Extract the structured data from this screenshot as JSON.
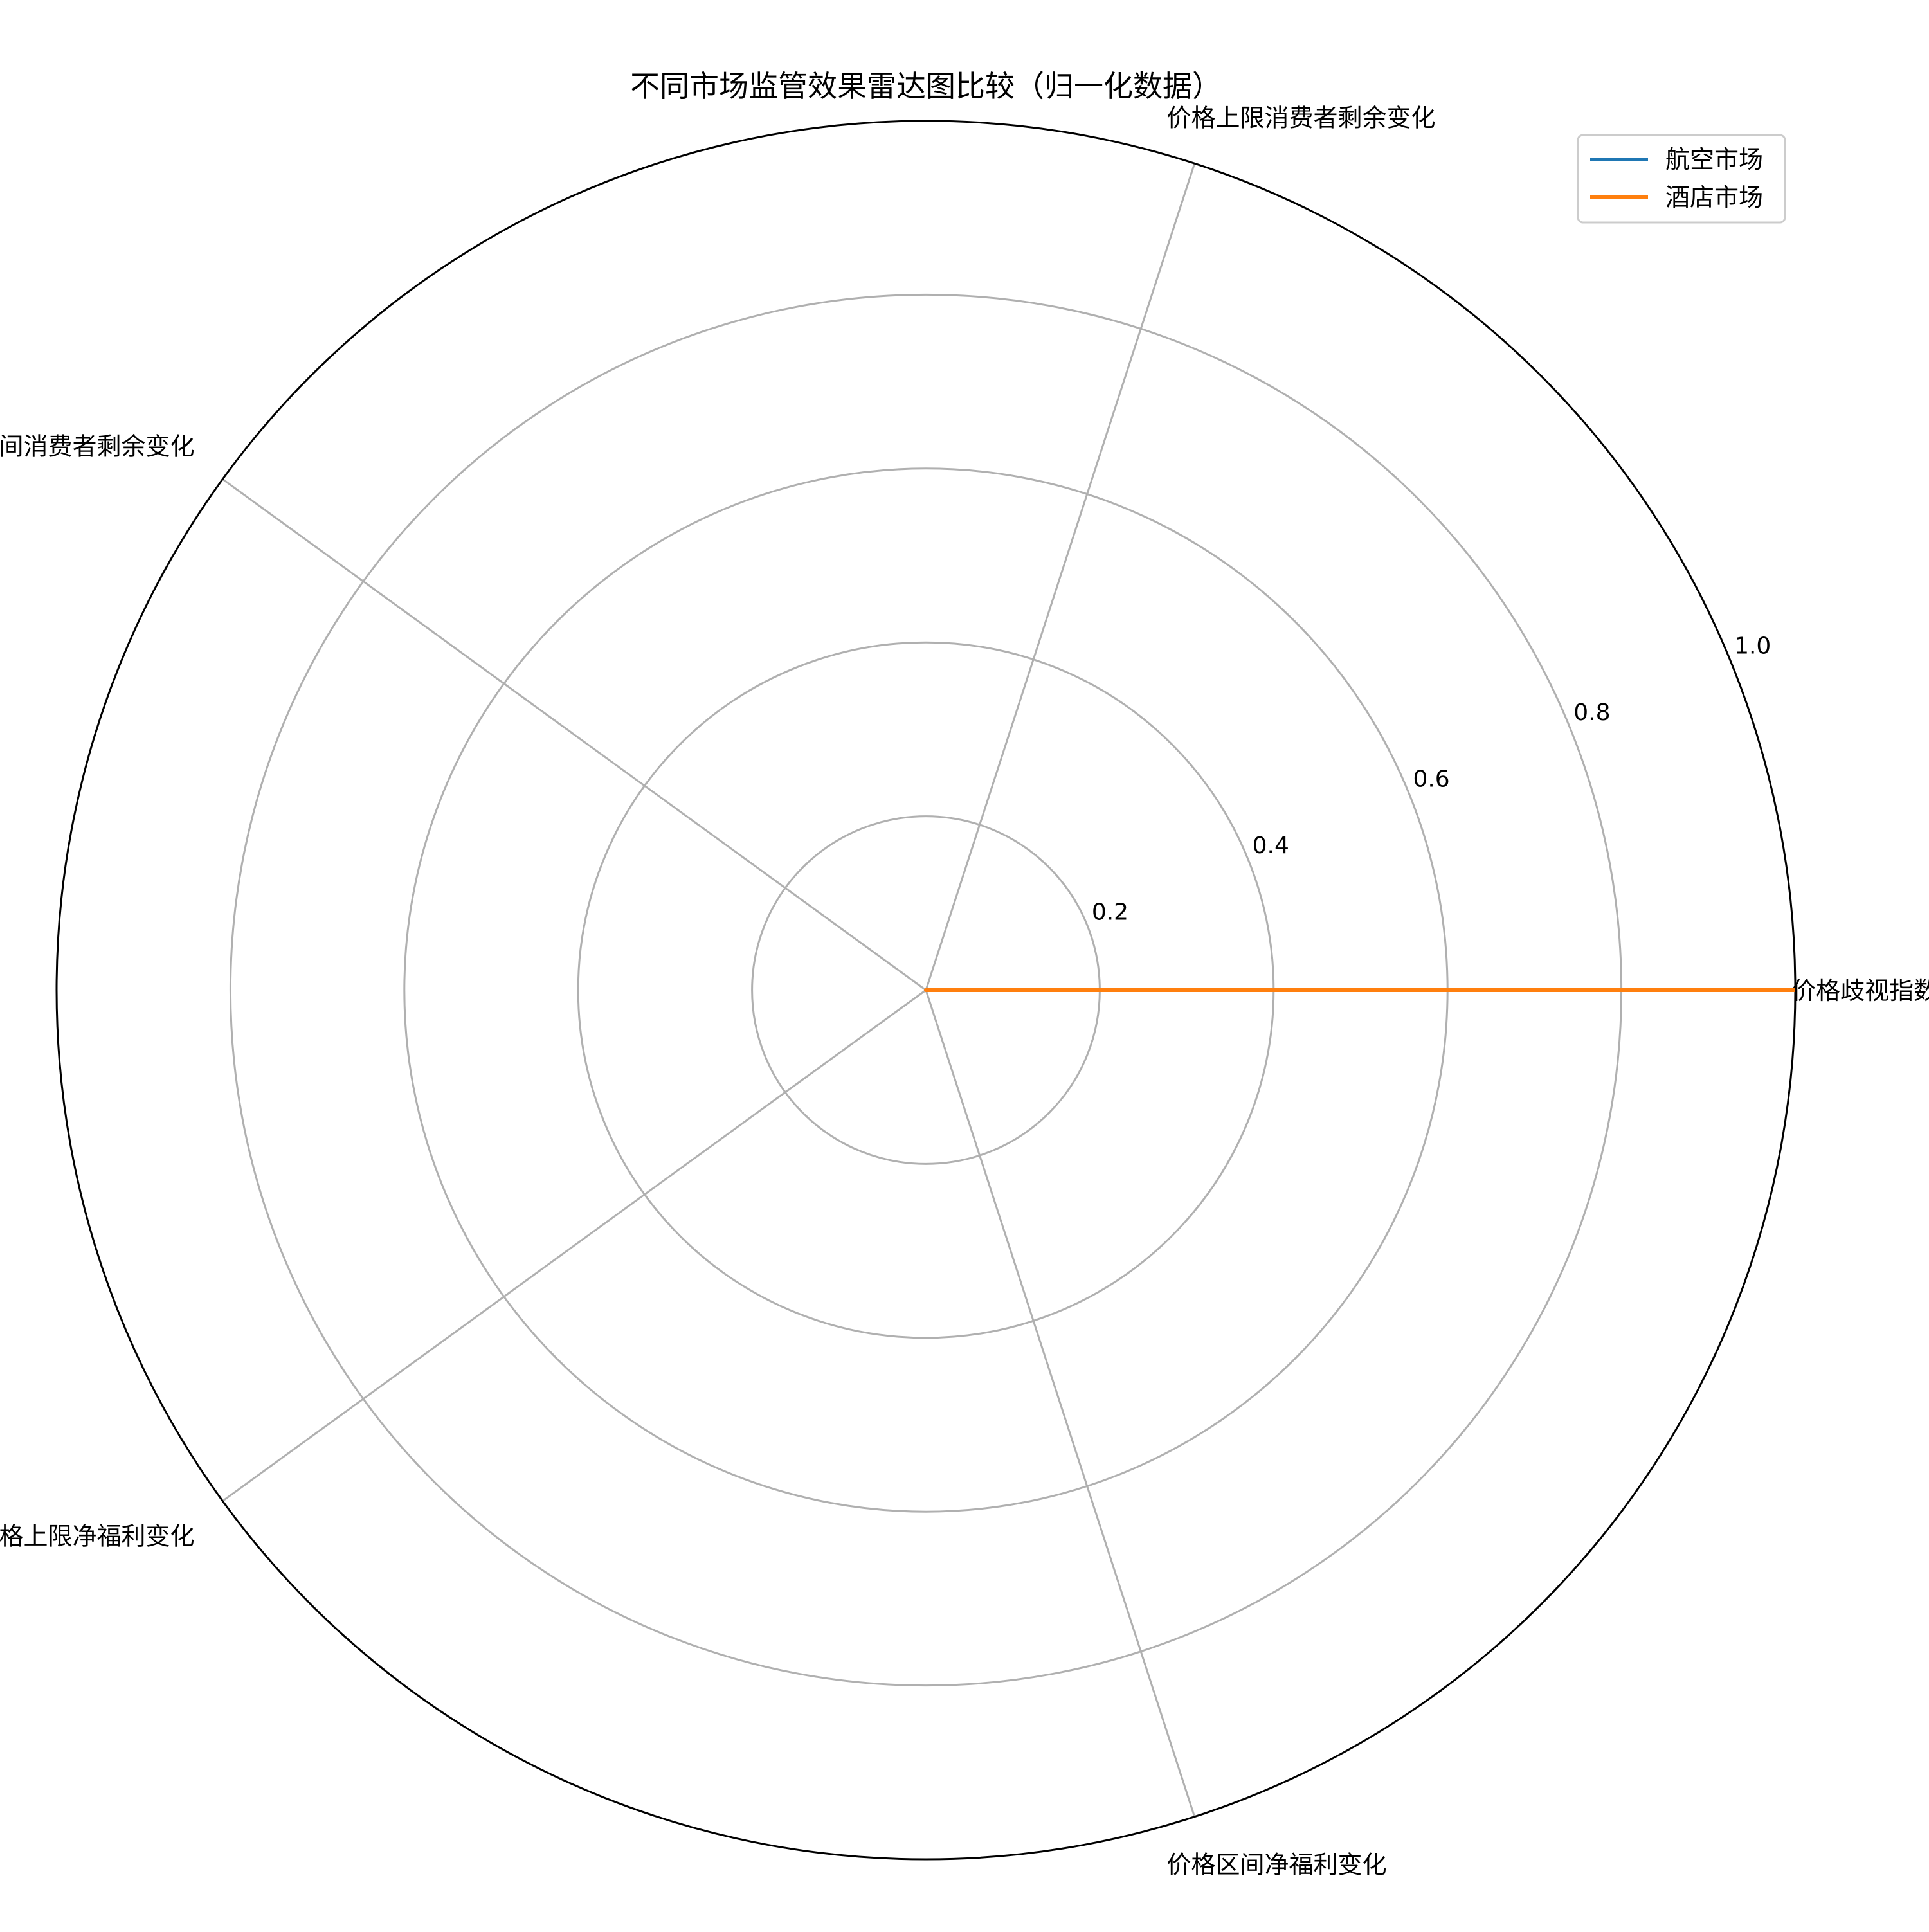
{
  "chart_data": {
    "type": "radar",
    "title": "不同市场监管效果雷达图比较（归一化数据）",
    "axes": [
      "价格歧视指数",
      "价格上限消费者剩余变化",
      "价格区间消费者剩余变化",
      "价格上限净福利变化",
      "价格区间净福利变化"
    ],
    "r_ticks": [
      "0.2",
      "0.4",
      "0.6",
      "0.8",
      "1.0"
    ],
    "r_tick_values": [
      0.2,
      0.4,
      0.6,
      0.8,
      1.0
    ],
    "rlim": [
      0,
      1.0
    ],
    "grid": true,
    "legend_position": "upper-right",
    "series": [
      {
        "name": "航空市场",
        "color": "#1f77b4",
        "values": [
          0,
          0,
          0,
          0,
          0
        ]
      },
      {
        "name": "酒店市场",
        "color": "#ff7f0e",
        "values": [
          1.0,
          0,
          0,
          0,
          0
        ]
      }
    ]
  }
}
